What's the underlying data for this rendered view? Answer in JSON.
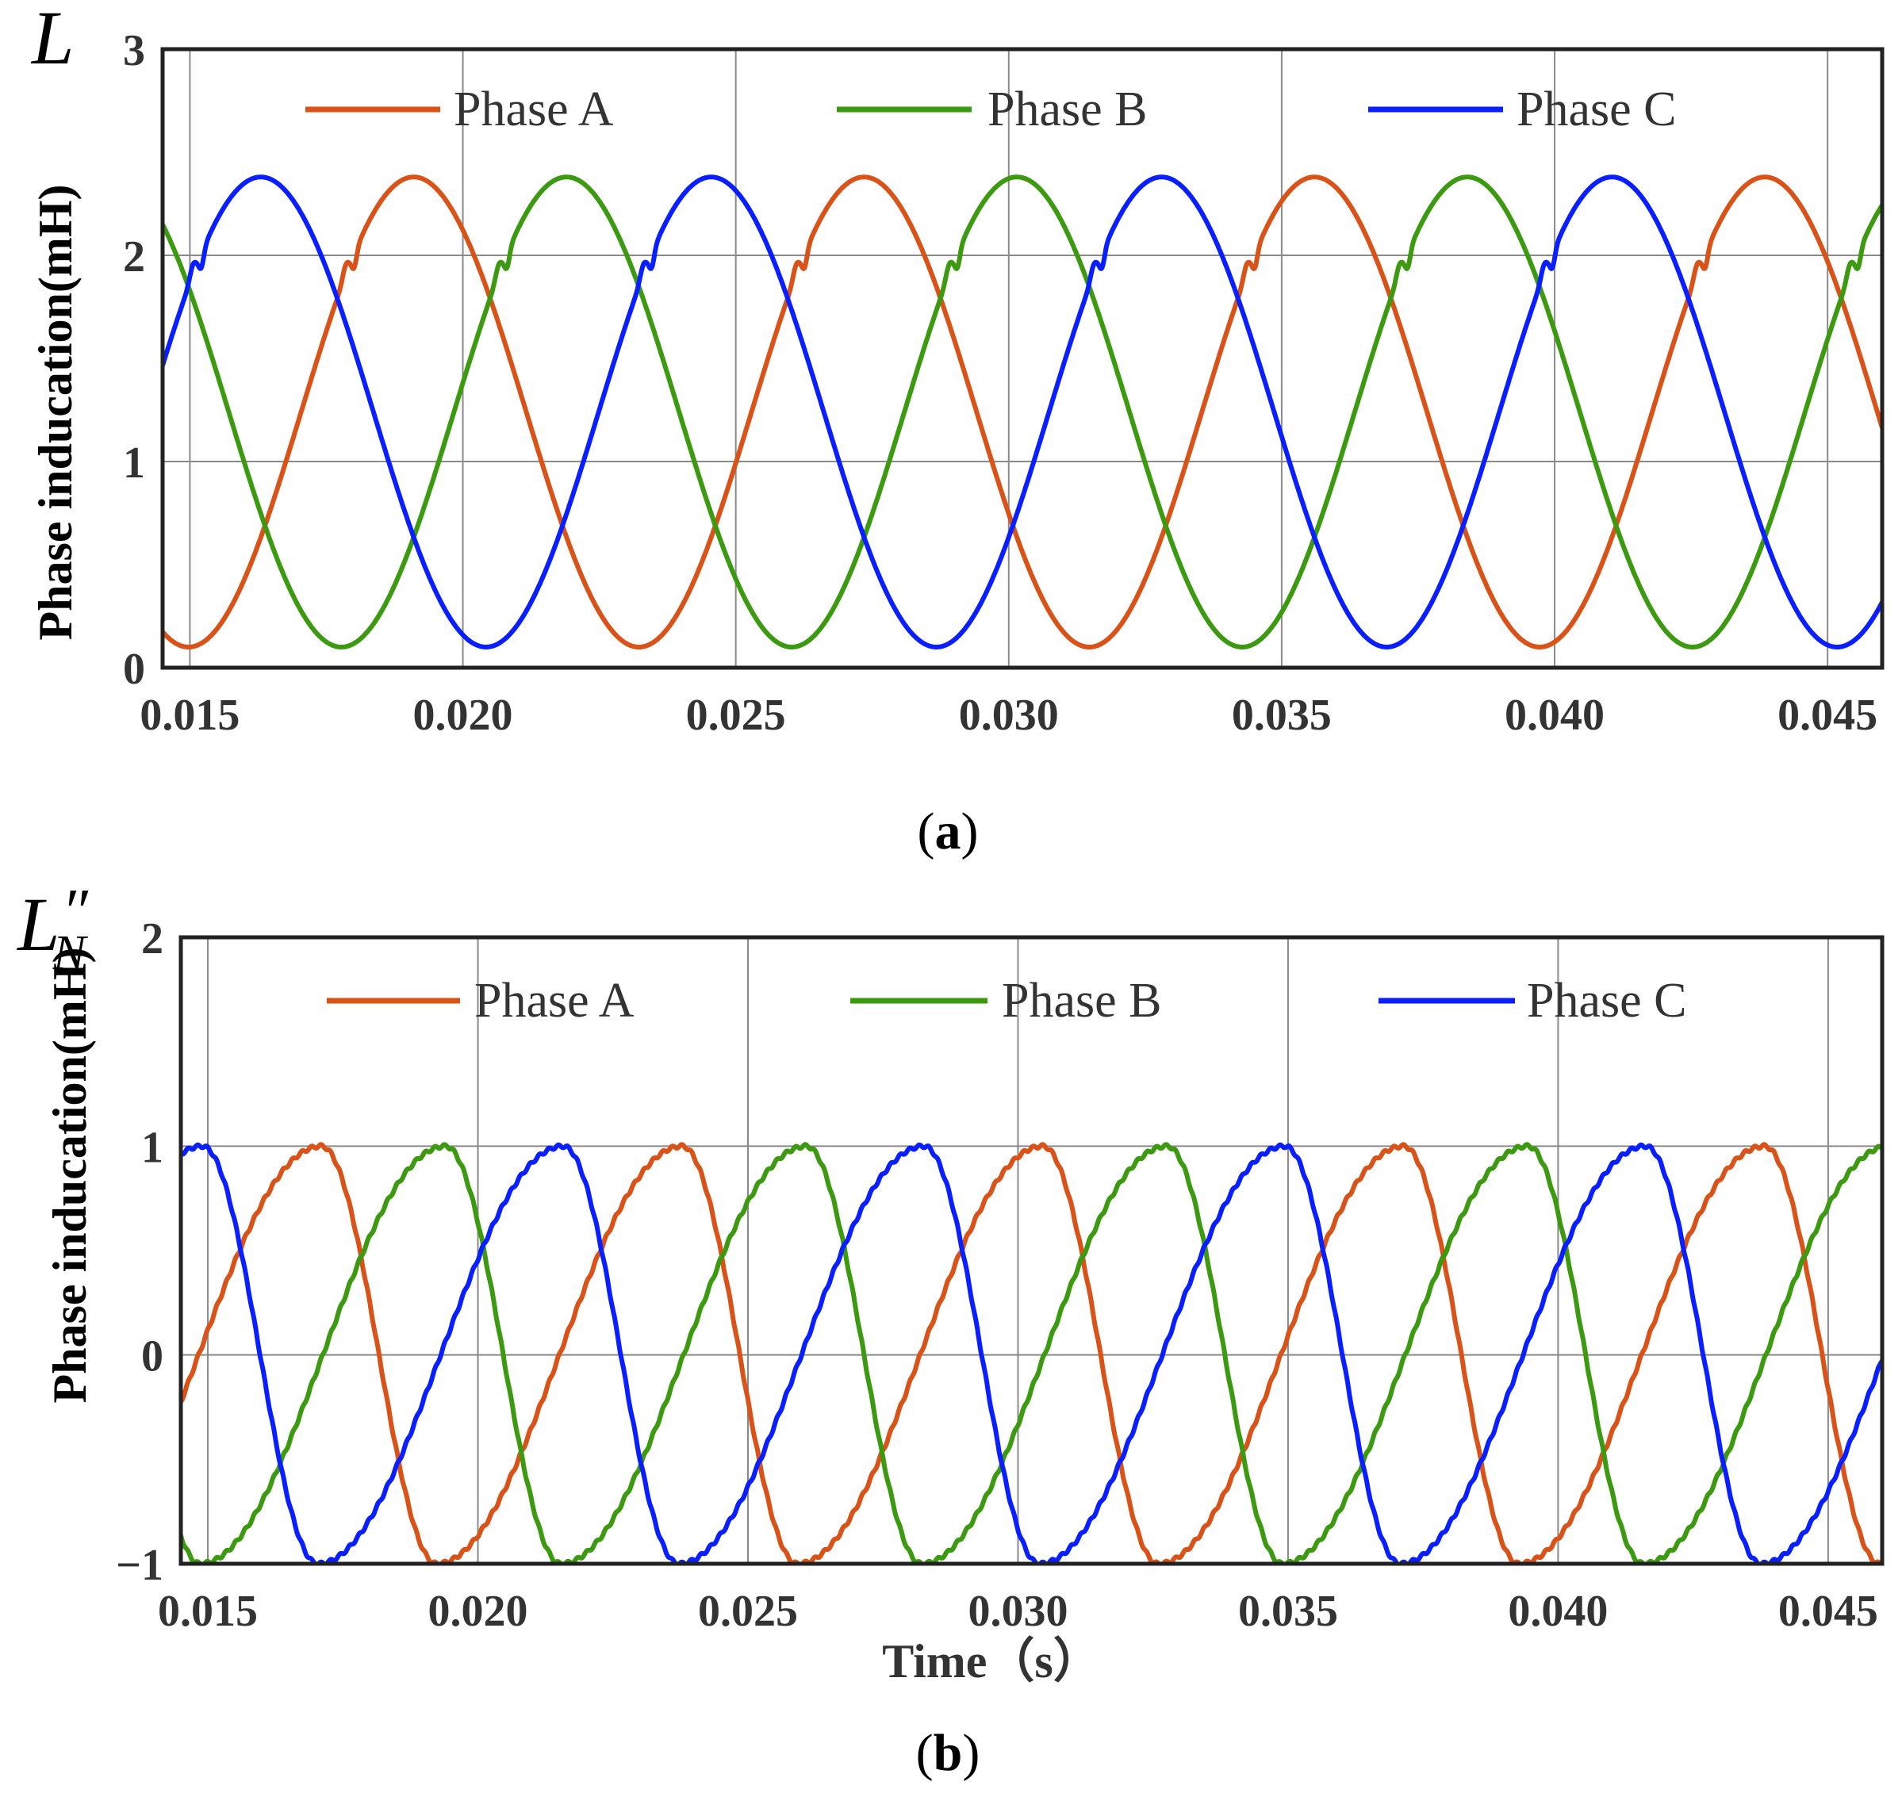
{
  "chart_data": [
    {
      "type": "line",
      "panel_label": "a",
      "symbol": "L",
      "symbol_prime": "",
      "symbol_sub": "",
      "ylabel": "Phase induсation(mH)",
      "xlabel": "",
      "xlim": [
        0.0145,
        0.046
      ],
      "ylim": [
        0,
        3
      ],
      "xticks": [
        0.015,
        0.02,
        0.025,
        0.03,
        0.035,
        0.04,
        0.045
      ],
      "xtick_labels": [
        "0.015",
        "0.020",
        "0.025",
        "0.030",
        "0.035",
        "0.040",
        "0.045"
      ],
      "yticks": [
        0,
        1,
        2,
        3
      ],
      "ytick_labels": [
        "0",
        "1",
        "2",
        "3"
      ],
      "grid": true,
      "legend_position": "top",
      "model": {
        "kind": "inductance",
        "offset": 1.24,
        "amplitude": 1.14,
        "period": 0.00825,
        "bump_height": 0.05
      },
      "series": [
        {
          "name": "Phase A",
          "color": "#d95319",
          "peak_times": [
            0.0191,
            0.0273,
            0.0355,
            0.0436
          ]
        },
        {
          "name": "Phase B",
          "color": "#3b9a0f",
          "peak_times": [
            0.0219,
            0.03,
            0.0381
          ]
        },
        {
          "name": "Phase C",
          "color": "#0a1fff",
          "peak_times": [
            0.0163,
            0.0245,
            0.0327,
            0.0409
          ]
        }
      ]
    },
    {
      "type": "line",
      "panel_label": "b",
      "symbol": "L",
      "symbol_prime": "″",
      "symbol_sub": "N",
      "ylabel": "Phase induсation(mH)",
      "xlabel": "Time（s）",
      "xlim": [
        0.0145,
        0.046
      ],
      "ylim": [
        -1,
        2
      ],
      "xticks": [
        0.015,
        0.02,
        0.025,
        0.03,
        0.035,
        0.04,
        0.045
      ],
      "xtick_labels": [
        "0.015",
        "0.020",
        "0.025",
        "0.030",
        "0.035",
        "0.040",
        "0.045"
      ],
      "yticks": [
        -1,
        0,
        1,
        2
      ],
      "ytick_labels": [
        "−1",
        "0",
        "1",
        "2"
      ],
      "grid": true,
      "legend_position": "top",
      "model": {
        "kind": "normalized",
        "offset": 0,
        "amplitude": 1,
        "period": 0.00668
      },
      "series": [
        {
          "name": "Phase A",
          "color": "#d95319",
          "peak_times": [
            0.0171,
            0.0238,
            0.0305,
            0.0372,
            0.0439
          ]
        },
        {
          "name": "Phase B",
          "color": "#3b9a0f",
          "peak_times": [
            0.0194,
            0.0261,
            0.0328,
            0.0395
          ]
        },
        {
          "name": "Phase C",
          "color": "#0a1fff",
          "peak_times": [
            0.0149,
            0.0216,
            0.0283,
            0.035,
            0.0417
          ]
        }
      ]
    }
  ]
}
